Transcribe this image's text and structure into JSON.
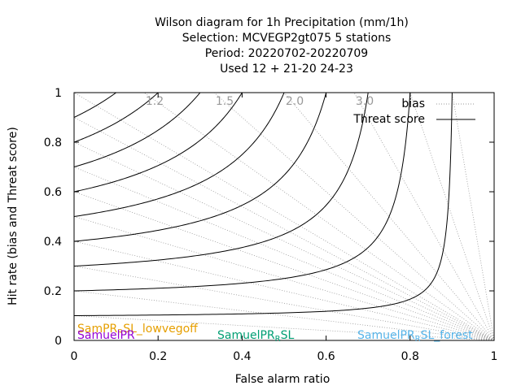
{
  "chart_data": {
    "type": "line",
    "title_lines": [
      "Wilson diagram  for 1h Precipitation (mm/1h)",
      "Selection: MCVEGP2gt075       5 stations",
      "Period: 20220702-20220709",
      "Used  12 + 21-20 24-23"
    ],
    "xlabel": "False alarm ratio",
    "ylabel": "Hit rate (bias and Threat score)",
    "xlim": [
      0,
      1
    ],
    "ylim": [
      0,
      1
    ],
    "x_ticks": [
      "0",
      "0.2",
      "0.4",
      "0.6",
      "0.8",
      "1"
    ],
    "y_ticks": [
      "0",
      "0.2",
      "0.4",
      "0.6",
      "0.8",
      "1"
    ],
    "legend": {
      "position": "top-right",
      "entries": [
        {
          "label": "bias",
          "style": "dotted",
          "color": "#999999"
        },
        {
          "label": "Threat score",
          "style": "solid",
          "color": "#000000"
        }
      ]
    },
    "bias_isolines": [
      0.1,
      0.2,
      0.3,
      0.4,
      0.5,
      0.6,
      0.7,
      0.8,
      0.9,
      1.0,
      1.2,
      1.5,
      2.0,
      3.0,
      5.0,
      10.0
    ],
    "bias_labels": [
      {
        "text": "1.2",
        "bias": 1.2
      },
      {
        "text": "1.5",
        "bias": 1.5
      },
      {
        "text": "2.0",
        "bias": 2.0
      },
      {
        "text": "3.0",
        "bias": 3.0
      }
    ],
    "threat_score_isolines": [
      0.1,
      0.2,
      0.3,
      0.4,
      0.5,
      0.6,
      0.7,
      0.8,
      0.9
    ],
    "series": [
      {
        "name": "SamPR_R SL_lowvegoff",
        "label_main": "SamPR",
        "label_sub": "R",
        "label_rest": "SL_lowvegoff",
        "color": "#e69f00"
      },
      {
        "name": "SamuelPR",
        "label_main": "SamuelPR",
        "label_sub": "",
        "label_rest": "",
        "color": "#9400d3"
      },
      {
        "name": "SamuelPR_R SL",
        "label_main": "SamuelPR",
        "label_sub": "R",
        "label_rest": "SL",
        "color": "#009e73"
      },
      {
        "name": "SamuelPR_R SL_forest",
        "label_main": "SamuelPR",
        "label_sub": "R",
        "label_rest": "SL_forest",
        "color": "#56b4e9"
      }
    ]
  }
}
